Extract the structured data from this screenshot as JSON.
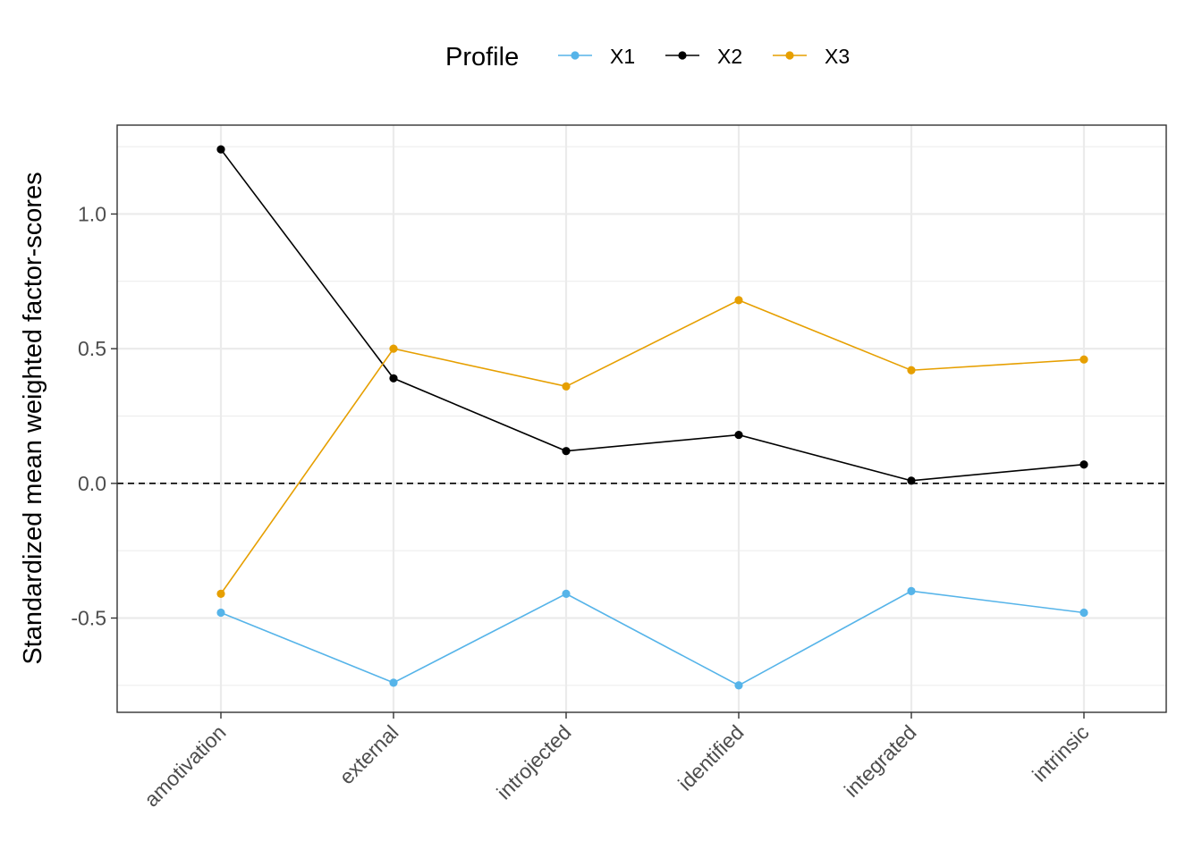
{
  "chart_data": {
    "type": "line",
    "categories": [
      "amotivation",
      "external",
      "introjected",
      "identified",
      "integrated",
      "intrinsic"
    ],
    "series": [
      {
        "name": "X1",
        "color": "#56B4E9",
        "values": [
          -0.48,
          -0.74,
          -0.41,
          -0.75,
          -0.4,
          -0.48
        ]
      },
      {
        "name": "X2",
        "color": "#000000",
        "values": [
          1.24,
          0.39,
          0.12,
          0.18,
          0.01,
          0.07
        ]
      },
      {
        "name": "X3",
        "color": "#E69F00",
        "values": [
          -0.41,
          0.5,
          0.36,
          0.68,
          0.42,
          0.46
        ]
      }
    ],
    "title": "",
    "xlabel": "",
    "ylabel": "Standardized mean weighted factor-scores",
    "ylim": [
      -0.85,
      1.33
    ],
    "yticks": [
      -0.5,
      0.0,
      0.5,
      1.0
    ],
    "ytick_labels": [
      "-0.5",
      "0.0",
      "0.5",
      "1.0"
    ],
    "reference_line": {
      "y": 0.0,
      "style": "dashed"
    },
    "legend": {
      "title": "Profile",
      "position": "top"
    },
    "grid": true
  }
}
